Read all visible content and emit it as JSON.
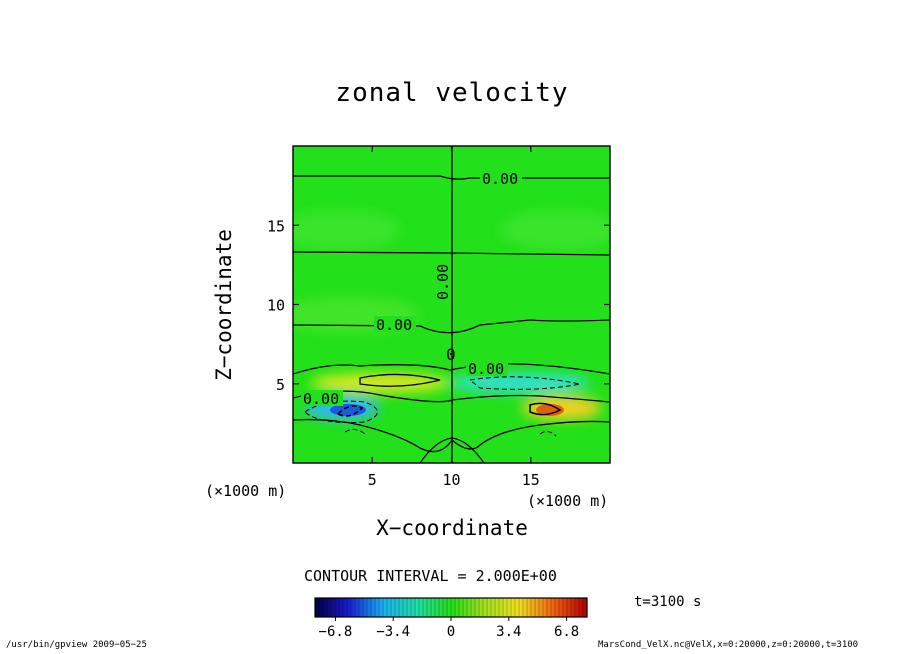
{
  "chart_data": {
    "type": "heatmap",
    "title": "zonal velocity",
    "xlabel": "X−coordinate",
    "ylabel": "Z−coordinate",
    "x_unit_left": "(×1000 m)",
    "x_unit_right": "(×1000 m)",
    "xlim": [
      0,
      20
    ],
    "ylim": [
      0,
      20
    ],
    "x_ticks": [
      5,
      10,
      15
    ],
    "y_ticks": [
      5,
      10,
      15
    ],
    "contour_interval": "CONTOUR INTERVAL = 2.000E+00",
    "contour_labels": [
      "0.00",
      "0.00",
      "0.00",
      "0.00",
      "0.00",
      "0"
    ],
    "colorbar": {
      "min": -8,
      "max": 8,
      "ticks": [
        "−6.8",
        "−3.4",
        "0",
        "3.4",
        "6.8"
      ]
    },
    "features": [
      {
        "x": 4.2,
        "z": 3.2,
        "value": -5.5,
        "sign": "negative"
      },
      {
        "x": 15.8,
        "z": 3.2,
        "value": 5.5,
        "sign": "positive"
      },
      {
        "x": 15.0,
        "z": 5.1,
        "value": -2.5,
        "sign": "negative"
      },
      {
        "x": 5.5,
        "z": 5.1,
        "value": 2.0,
        "sign": "positive"
      }
    ],
    "time_label": "t=3100 s"
  },
  "footer": {
    "left": "/usr/bin/gpview   2009−05−25",
    "right": "MarsCond_VelX.nc@VelX,x=0:20000,z=0:20000,t=3100"
  },
  "colors": {
    "zero": "#22e019",
    "positive_max": "#c01a00",
    "negative_max": "#1a1ac0"
  }
}
